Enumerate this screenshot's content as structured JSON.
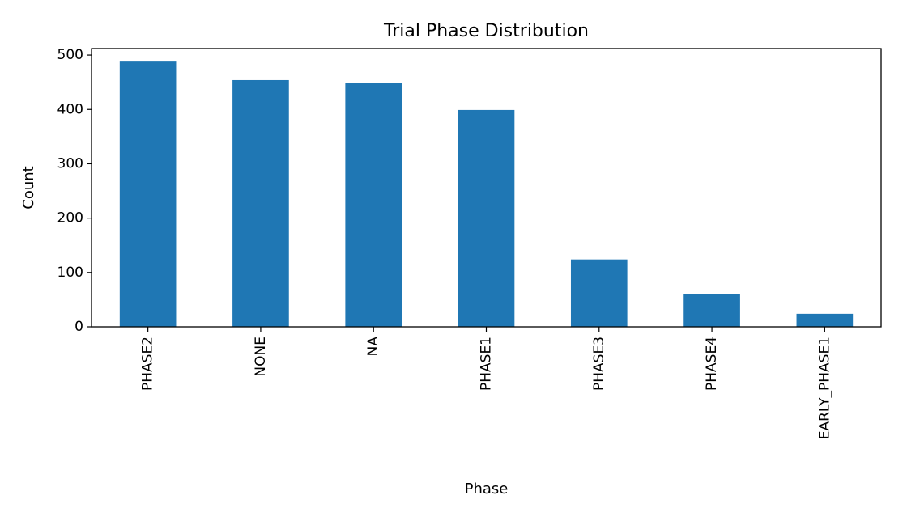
{
  "chart_data": {
    "type": "bar",
    "title": "Trial Phase Distribution",
    "xlabel": "Phase",
    "ylabel": "Count",
    "categories": [
      "PHASE2",
      "NONE",
      "NA",
      "PHASE1",
      "PHASE3",
      "PHASE4",
      "EARLY_PHASE1"
    ],
    "values": [
      488,
      454,
      449,
      399,
      124,
      61,
      24
    ],
    "ylim": [
      0,
      512
    ],
    "yticks": [
      0,
      100,
      200,
      300,
      400,
      500
    ],
    "grid": false,
    "legend": "none",
    "colors": {
      "bar": "#1f77b4",
      "axis": "#000000",
      "background": "#ffffff"
    }
  }
}
